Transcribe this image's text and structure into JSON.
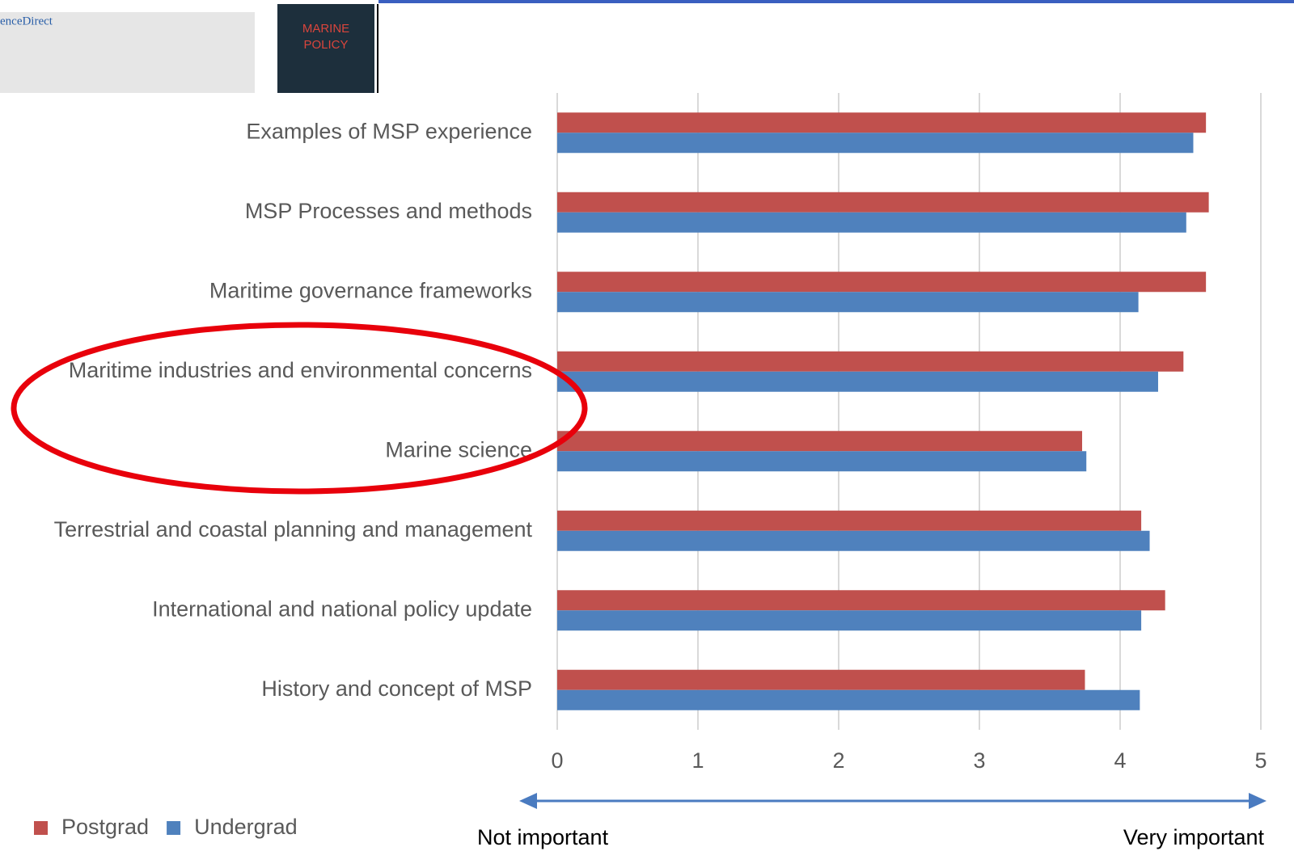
{
  "chart_data": {
    "type": "barh",
    "categories": [
      "Examples of MSP experience",
      "MSP Processes and methods",
      "Maritime governance frameworks",
      "Maritime industries and environmental concerns",
      "Marine science",
      "Terrestrial and coastal planning and management",
      "International and national policy update",
      "History and concept of MSP"
    ],
    "series": [
      {
        "name": "Postgrad",
        "color": "#c0504d",
        "values": [
          4.61,
          4.63,
          4.61,
          4.45,
          3.73,
          4.15,
          4.32,
          3.75
        ]
      },
      {
        "name": "Undergrad",
        "color": "#4f81bd",
        "values": [
          4.52,
          4.47,
          4.13,
          4.27,
          3.76,
          4.21,
          4.15,
          4.14
        ]
      }
    ],
    "xlim": [
      0,
      5
    ],
    "xticks": [
      0,
      1,
      2,
      3,
      4,
      5
    ],
    "grid": true,
    "legend": "bottom-left",
    "annotations": [
      "Not important",
      "Very important"
    ]
  },
  "background": {
    "source": "enceDirect",
    "cover": [
      "MARINE",
      "POLICY"
    ]
  }
}
